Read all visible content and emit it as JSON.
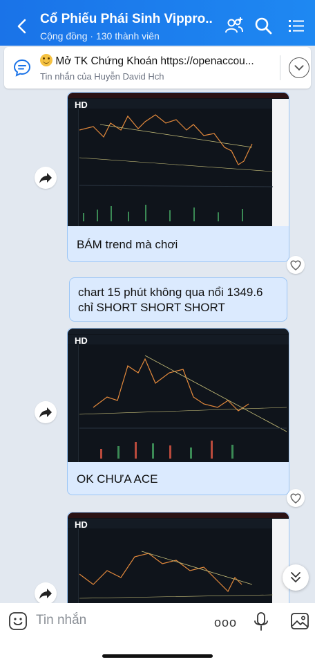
{
  "header": {
    "title": "Cổ Phiếu Phái Sinh Vippro...",
    "subtitle": "Cộng đồng · 130 thành viên"
  },
  "pinned": {
    "title": "Mở TK Chứng Khoán https://openaccou...",
    "sender": "Tin nhắn của Huyễn David Hch"
  },
  "messages": [
    {
      "caption": "BÁM trend mà chơi",
      "chart_label": "HD"
    },
    {
      "text": "chart 15 phút không qua nổi 1349.6 chỉ SHORT SHORT SHORT"
    },
    {
      "caption": "OK CHƯA ACE",
      "chart_label": "HD"
    },
    {
      "chart_label": "HD"
    }
  ],
  "input": {
    "placeholder": "Tin nhắn"
  },
  "colors": {
    "header": "#1a73e8",
    "bubble": "#dbeafe",
    "chart_bg": "#0f141b",
    "candle_up": "#e58a3c",
    "trend_line": "#c8c07a"
  }
}
